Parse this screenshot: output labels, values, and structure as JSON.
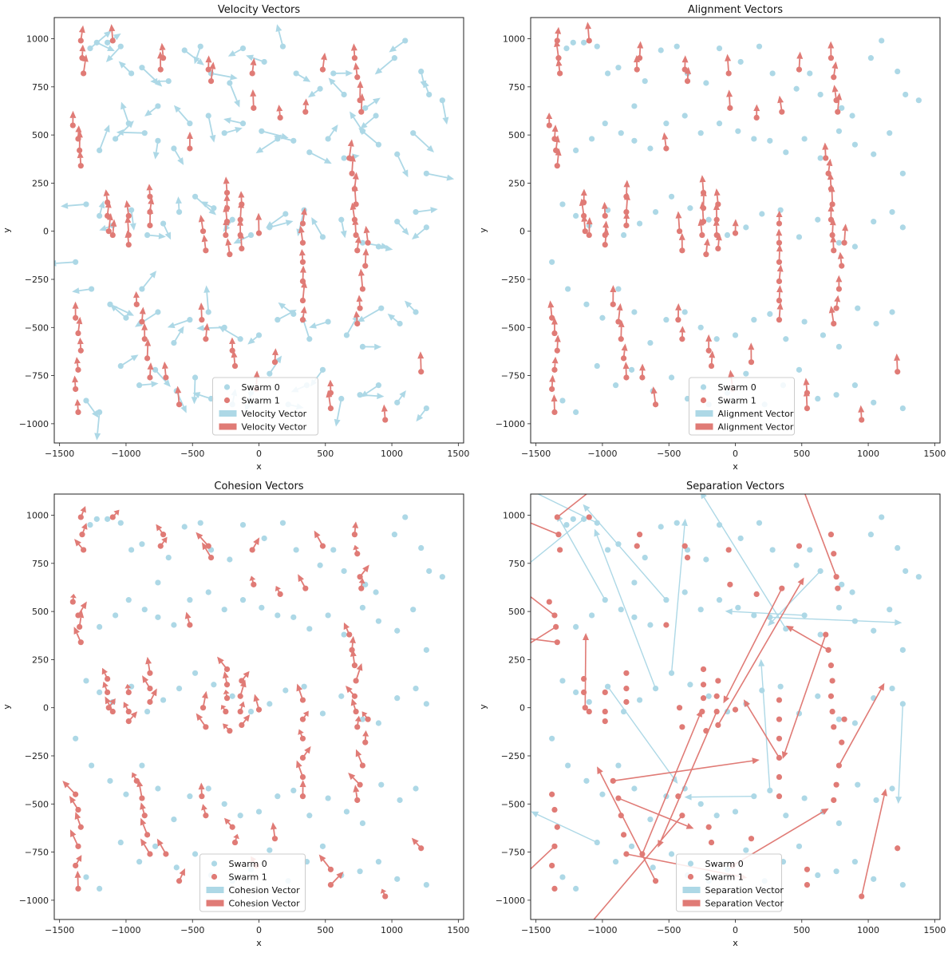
{
  "colors": {
    "swarm0": "#add8e6",
    "swarm1": "#e07b76"
  },
  "legend": {
    "swarm0": "Swarm 0",
    "swarm1": "Swarm 1",
    "velocity": "Velocity Vector",
    "alignment": "Alignment Vector",
    "cohesion": "Cohesion Vector",
    "separation": "Separation Vector"
  },
  "chart_data": [
    {
      "type": "scatter",
      "title": "Velocity Vectors",
      "xlabel": "x",
      "ylabel": "y",
      "xlim": [
        -1540,
        1540
      ],
      "ylim": [
        -1100,
        1110
      ],
      "xticks": [
        -1500,
        -1000,
        -500,
        0,
        500,
        1000,
        1500
      ],
      "yticks": [
        -1000,
        -750,
        -500,
        -250,
        0,
        250,
        500,
        750,
        1000
      ],
      "legend_position": "bottom-center",
      "series": [
        {
          "name": "Swarm 0",
          "points": [
            [
              -1270,
              950
            ],
            [
              -1220,
              980
            ],
            [
              -1140,
              980
            ],
            [
              -1040,
              960
            ],
            [
              -960,
              820
            ],
            [
              -880,
              850
            ],
            [
              -760,
              650
            ],
            [
              -680,
              780
            ],
            [
              -560,
              940
            ],
            [
              -440,
              960
            ],
            [
              -360,
              820
            ],
            [
              -220,
              770
            ],
            [
              -120,
              950
            ],
            [
              40,
              880
            ],
            [
              180,
              960
            ],
            [
              280,
              820
            ],
            [
              460,
              740
            ],
            [
              560,
              820
            ],
            [
              640,
              710
            ],
            [
              800,
              640
            ],
            [
              880,
              600
            ],
            [
              1020,
              900
            ],
            [
              1100,
              990
            ],
            [
              1220,
              830
            ],
            [
              1280,
              710
            ],
            [
              1380,
              680
            ],
            [
              -1200,
              420
            ],
            [
              -1080,
              480
            ],
            [
              -980,
              560
            ],
            [
              -860,
              510
            ],
            [
              -760,
              470
            ],
            [
              -640,
              430
            ],
            [
              -520,
              560
            ],
            [
              -380,
              600
            ],
            [
              -260,
              510
            ],
            [
              -120,
              560
            ],
            [
              20,
              520
            ],
            [
              140,
              480
            ],
            [
              260,
              470
            ],
            [
              380,
              410
            ],
            [
              520,
              480
            ],
            [
              640,
              380
            ],
            [
              780,
              520
            ],
            [
              900,
              450
            ],
            [
              1040,
              400
            ],
            [
              1160,
              510
            ],
            [
              1260,
              300
            ],
            [
              -1300,
              140
            ],
            [
              -1200,
              80
            ],
            [
              -1100,
              30
            ],
            [
              -960,
              110
            ],
            [
              -840,
              -20
            ],
            [
              -720,
              40
            ],
            [
              -600,
              100
            ],
            [
              -480,
              180
            ],
            [
              -340,
              120
            ],
            [
              -200,
              60
            ],
            [
              -60,
              -20
            ],
            [
              80,
              20
            ],
            [
              200,
              90
            ],
            [
              340,
              110
            ],
            [
              480,
              -30
            ],
            [
              620,
              60
            ],
            [
              780,
              -60
            ],
            [
              900,
              -80
            ],
            [
              1040,
              50
            ],
            [
              1180,
              100
            ],
            [
              1260,
              20
            ],
            [
              -1380,
              -160
            ],
            [
              -1260,
              -300
            ],
            [
              -1120,
              -380
            ],
            [
              -1000,
              -450
            ],
            [
              -880,
              -300
            ],
            [
              -760,
              -420
            ],
            [
              -640,
              -580
            ],
            [
              -520,
              -460
            ],
            [
              -380,
              -420
            ],
            [
              -260,
              -500
            ],
            [
              -140,
              -560
            ],
            [
              0,
              -540
            ],
            [
              140,
              -460
            ],
            [
              260,
              -430
            ],
            [
              380,
              -560
            ],
            [
              520,
              -470
            ],
            [
              660,
              -540
            ],
            [
              780,
              -600
            ],
            [
              920,
              -400
            ],
            [
              1060,
              -480
            ],
            [
              1180,
              -420
            ],
            [
              -1300,
              -880
            ],
            [
              -1200,
              -940
            ],
            [
              -1040,
              -700
            ],
            [
              -900,
              -800
            ],
            [
              -780,
              -720
            ],
            [
              -620,
              -830
            ],
            [
              -480,
              -760
            ],
            [
              -360,
              -870
            ],
            [
              -200,
              -900
            ],
            [
              -60,
              -840
            ],
            [
              80,
              -740
            ],
            [
              220,
              -900
            ],
            [
              360,
              -800
            ],
            [
              480,
              -720
            ],
            [
              620,
              -870
            ],
            [
              760,
              -850
            ],
            [
              900,
              -800
            ],
            [
              1040,
              -890
            ],
            [
              1260,
              -920
            ]
          ]
        },
        {
          "name": "Swarm 1",
          "points": [
            [
              -1340,
              990
            ],
            [
              -1330,
              900
            ],
            [
              -1320,
              820
            ],
            [
              -1100,
              990
            ],
            [
              -720,
              900
            ],
            [
              -740,
              840
            ],
            [
              -380,
              840
            ],
            [
              -360,
              780
            ],
            [
              -50,
              820
            ],
            [
              -40,
              640
            ],
            [
              160,
              590
            ],
            [
              350,
              620
            ],
            [
              480,
              840
            ],
            [
              720,
              900
            ],
            [
              740,
              800
            ],
            [
              760,
              680
            ],
            [
              770,
              620
            ],
            [
              -1400,
              550
            ],
            [
              -1360,
              480
            ],
            [
              -1350,
              420
            ],
            [
              -1340,
              340
            ],
            [
              -520,
              430
            ],
            [
              -130,
              140
            ],
            [
              -140,
              60
            ],
            [
              -140,
              -20
            ],
            [
              -130,
              -90
            ],
            [
              -1140,
              150
            ],
            [
              -1140,
              80
            ],
            [
              -1130,
              0
            ],
            [
              -1100,
              -20
            ],
            [
              -980,
              80
            ],
            [
              -980,
              -20
            ],
            [
              -980,
              -70
            ],
            [
              -820,
              180
            ],
            [
              -820,
              100
            ],
            [
              -820,
              30
            ],
            [
              -420,
              0
            ],
            [
              -400,
              -100
            ],
            [
              -240,
              200
            ],
            [
              -240,
              120
            ],
            [
              -240,
              50
            ],
            [
              -250,
              -20
            ],
            [
              -220,
              -120
            ],
            [
              0,
              -10
            ],
            [
              330,
              40
            ],
            [
              330,
              -60
            ],
            [
              330,
              -160
            ],
            [
              330,
              -260
            ],
            [
              330,
              -360
            ],
            [
              330,
              -460
            ],
            [
              680,
              380
            ],
            [
              700,
              300
            ],
            [
              720,
              220
            ],
            [
              730,
              140
            ],
            [
              720,
              60
            ],
            [
              730,
              -20
            ],
            [
              740,
              -100
            ],
            [
              820,
              -60
            ],
            [
              800,
              -180
            ],
            [
              780,
              -300
            ],
            [
              760,
              -400
            ],
            [
              740,
              -480
            ],
            [
              -1380,
              -450
            ],
            [
              -1360,
              -530
            ],
            [
              -1340,
              -620
            ],
            [
              -1360,
              -720
            ],
            [
              -1380,
              -820
            ],
            [
              -1360,
              -940
            ],
            [
              -920,
              -380
            ],
            [
              -880,
              -470
            ],
            [
              -860,
              -560
            ],
            [
              -840,
              -660
            ],
            [
              -820,
              -760
            ],
            [
              -700,
              -760
            ],
            [
              -600,
              -900
            ],
            [
              -430,
              -460
            ],
            [
              -400,
              -560
            ],
            [
              -200,
              -620
            ],
            [
              -180,
              -700
            ],
            [
              -20,
              -820
            ],
            [
              120,
              -680
            ],
            [
              540,
              -840
            ],
            [
              540,
              -920
            ],
            [
              950,
              -980
            ],
            [
              1220,
              -730
            ]
          ]
        }
      ]
    },
    {
      "type": "scatter",
      "title": "Alignment Vectors",
      "xlabel": "x",
      "ylabel": "y",
      "xlim": [
        -1540,
        1540
      ],
      "ylim": [
        -1100,
        1110
      ],
      "xticks": [
        -1500,
        -1000,
        -500,
        0,
        500,
        1000,
        1500
      ],
      "yticks": [
        -1000,
        -750,
        -500,
        -250,
        0,
        250,
        500,
        750,
        1000
      ],
      "legend_position": "bottom-center"
    },
    {
      "type": "scatter",
      "title": "Cohesion Vectors",
      "xlabel": "x",
      "ylabel": "y",
      "xlim": [
        -1540,
        1540
      ],
      "ylim": [
        -1100,
        1110
      ],
      "xticks": [
        -1500,
        -1000,
        -500,
        0,
        500,
        1000,
        1500
      ],
      "yticks": [
        -1000,
        -750,
        -500,
        -250,
        0,
        250,
        500,
        750,
        1000
      ],
      "legend_position": "bottom-center"
    },
    {
      "type": "scatter",
      "title": "Separation Vectors",
      "xlabel": "x",
      "ylabel": "y",
      "xlim": [
        -1540,
        1540
      ],
      "ylim": [
        -1100,
        1110
      ],
      "xticks": [
        -1500,
        -1000,
        -500,
        0,
        500,
        1000,
        1500
      ],
      "yticks": [
        -1000,
        -750,
        -500,
        -250,
        0,
        250,
        500,
        750,
        1000
      ],
      "legend_position": "bottom-center"
    }
  ]
}
